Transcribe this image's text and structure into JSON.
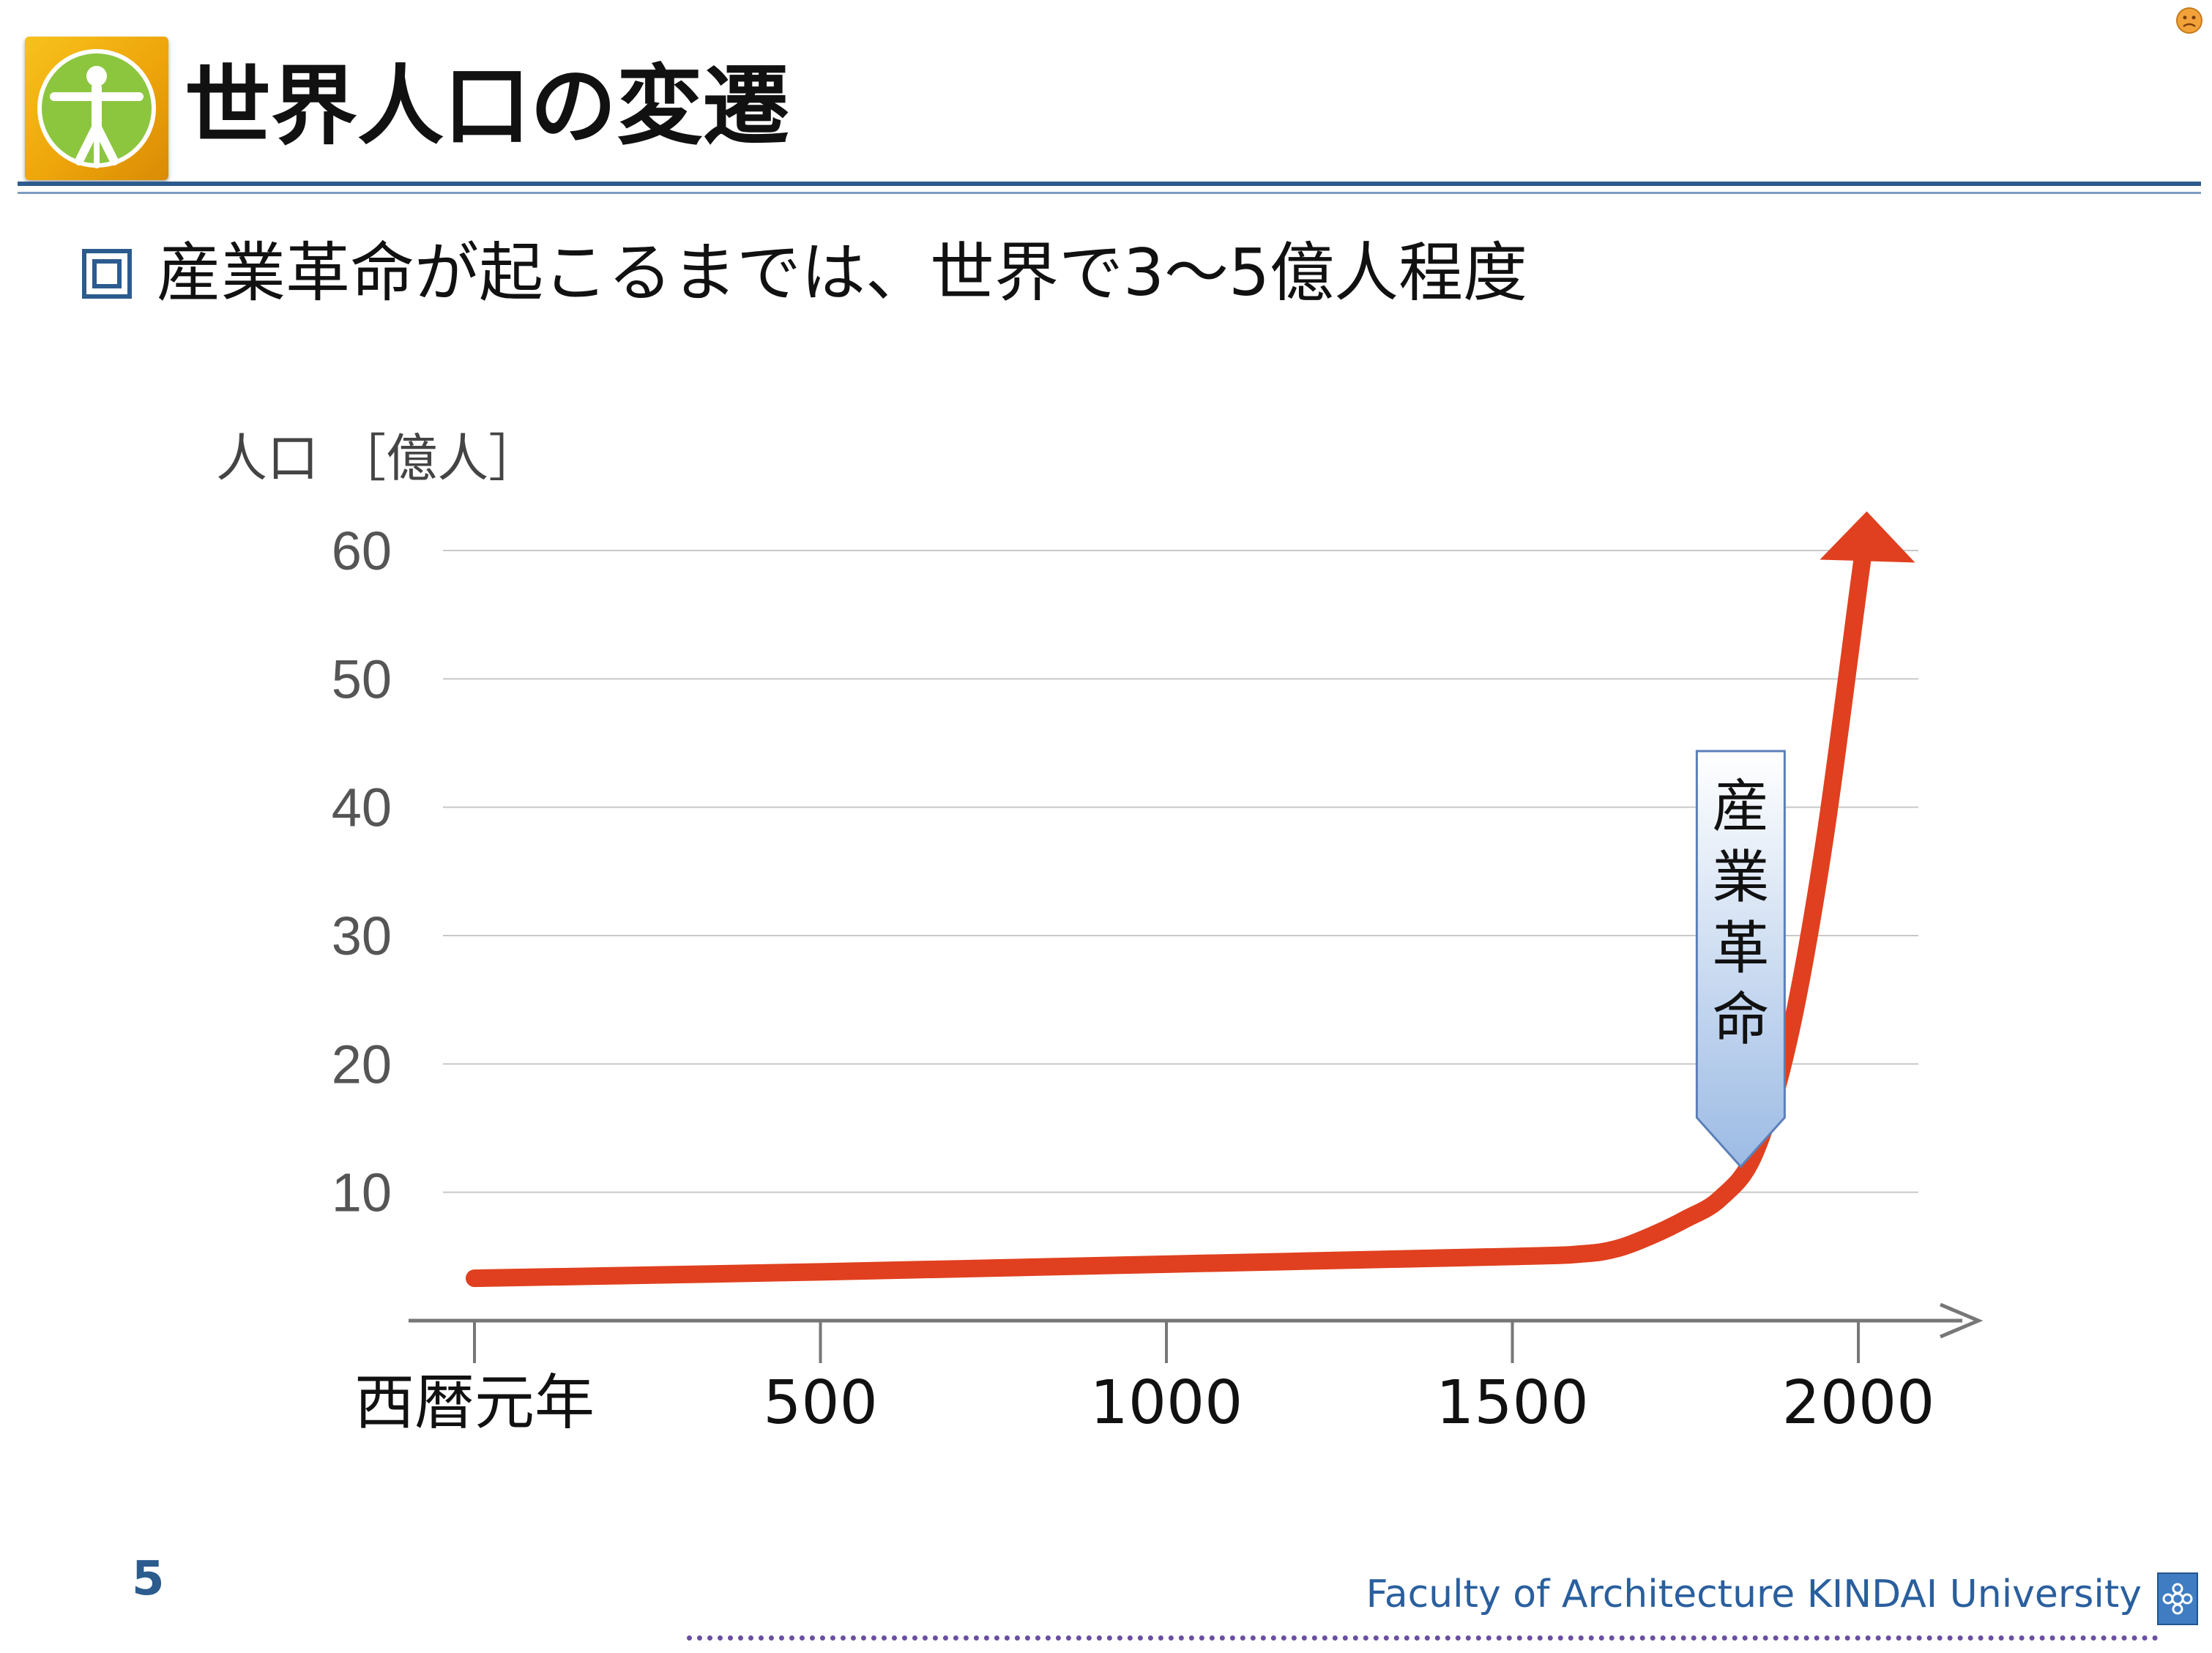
{
  "title": "世界人口の変遷",
  "bullet": "産業革命が起こるまでは、世界で3～5億人程度",
  "page_number": "5",
  "footer": "Faculty of Architecture  KINDAI University",
  "colors": {
    "curve": "#e0401f",
    "rule": "#2c5b8e",
    "footer_text": "#2a5f9e",
    "logo": "#f0ae10"
  },
  "icons": [
    "vitruvian-logo-icon",
    "square-bullet-icon",
    "university-logo-icon",
    "face-icon"
  ],
  "chart_data": {
    "type": "line",
    "ylabel": "人口 ［億人］",
    "ylim": [
      0,
      60
    ],
    "yticks": [
      10,
      20,
      30,
      40,
      50,
      60
    ],
    "xlim": [
      0,
      2000
    ],
    "xticks": [
      {
        "value": 0,
        "label": "西暦元年"
      },
      {
        "value": 500,
        "label": "500"
      },
      {
        "value": 1000,
        "label": "1000"
      },
      {
        "value": 1500,
        "label": "1500"
      },
      {
        "value": 2000,
        "label": "2000"
      }
    ],
    "grid": true,
    "series": [
      {
        "x": [
          0,
          500,
          1000,
          1500,
          1600,
          1650,
          1700,
          1750,
          1800,
          1850,
          1900,
          1950,
          2000,
          2010
        ],
        "y": [
          3.3,
          3.8,
          4.4,
          5.0,
          5.2,
          5.6,
          6.6,
          7.9,
          9.5,
          13,
          22,
          37,
          57,
          61
        ]
      }
    ],
    "annotation": {
      "label": "産業革命",
      "x": 1830,
      "points_to_y": 12
    }
  }
}
